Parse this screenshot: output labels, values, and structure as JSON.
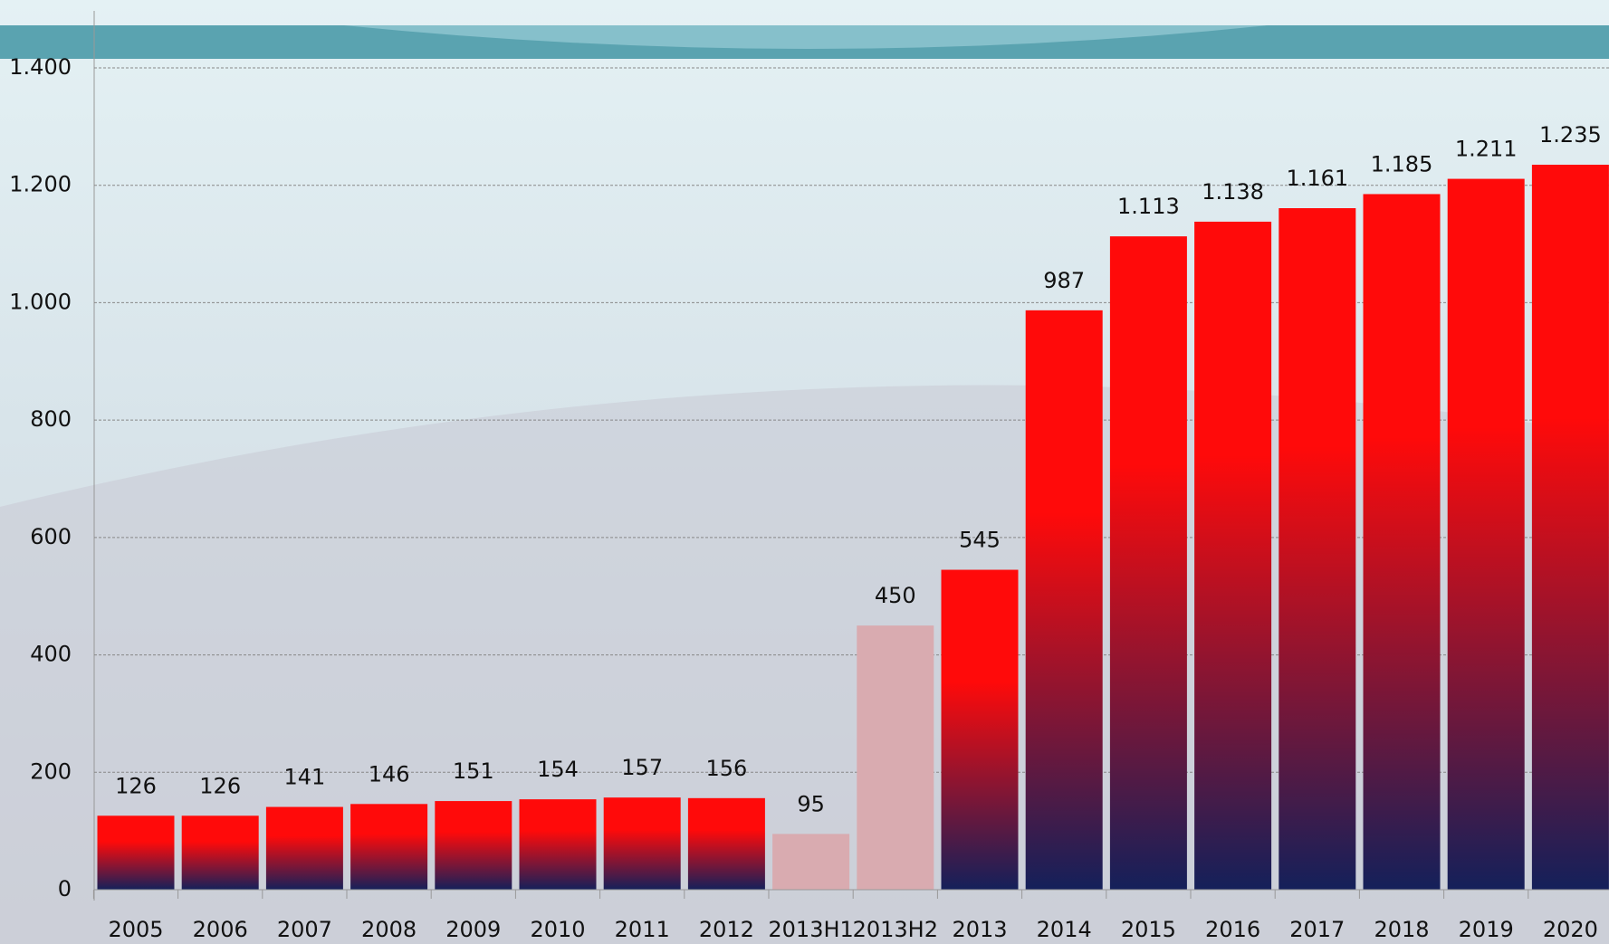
{
  "chart_data": {
    "type": "bar",
    "categories": [
      "2005",
      "2006",
      "2007",
      "2008",
      "2009",
      "2010",
      "2011",
      "2012",
      "2013H1",
      "2013H2",
      "2013",
      "2014",
      "2015",
      "2016",
      "2017",
      "2018",
      "2019",
      "2020"
    ],
    "values": [
      126,
      126,
      141,
      146,
      151,
      154,
      157,
      156,
      95,
      450,
      545,
      987,
      1113,
      1138,
      1161,
      1185,
      1211,
      1235
    ],
    "value_labels": [
      "126",
      "126",
      "141",
      "146",
      "151",
      "154",
      "157",
      "156",
      "95",
      "450",
      "545",
      "987",
      "1.113",
      "1.138",
      "1.161",
      "1.185",
      "1.211",
      "1.235"
    ],
    "colors": [
      "#ff0a0a",
      "#ff0a0a",
      "#ff0a0a",
      "#ff0a0a",
      "#ff0a0a",
      "#ff0a0a",
      "#ff0a0a",
      "#ff0a0a",
      "#d9abb0",
      "#d9abb0",
      "#ff0a0a",
      "#ff0a0a",
      "#ff0a0a",
      "#ff0a0a",
      "#ff0a0a",
      "#ff0a0a",
      "#ff0a0a",
      "#ff0a0a"
    ],
    "gradient": [
      true,
      true,
      true,
      true,
      true,
      true,
      true,
      true,
      false,
      false,
      true,
      true,
      true,
      true,
      true,
      true,
      true,
      true
    ],
    "gradient_bottom": "#14205a",
    "ylim": [
      0,
      1400
    ],
    "yticks": [
      0,
      200,
      400,
      600,
      800,
      {
        "value": 1000,
        "label": "1.000"
      },
      {
        "value": 1200,
        "label": "1.200"
      },
      {
        "value": 1400,
        "label": "1.400"
      }
    ],
    "grid": true
  }
}
